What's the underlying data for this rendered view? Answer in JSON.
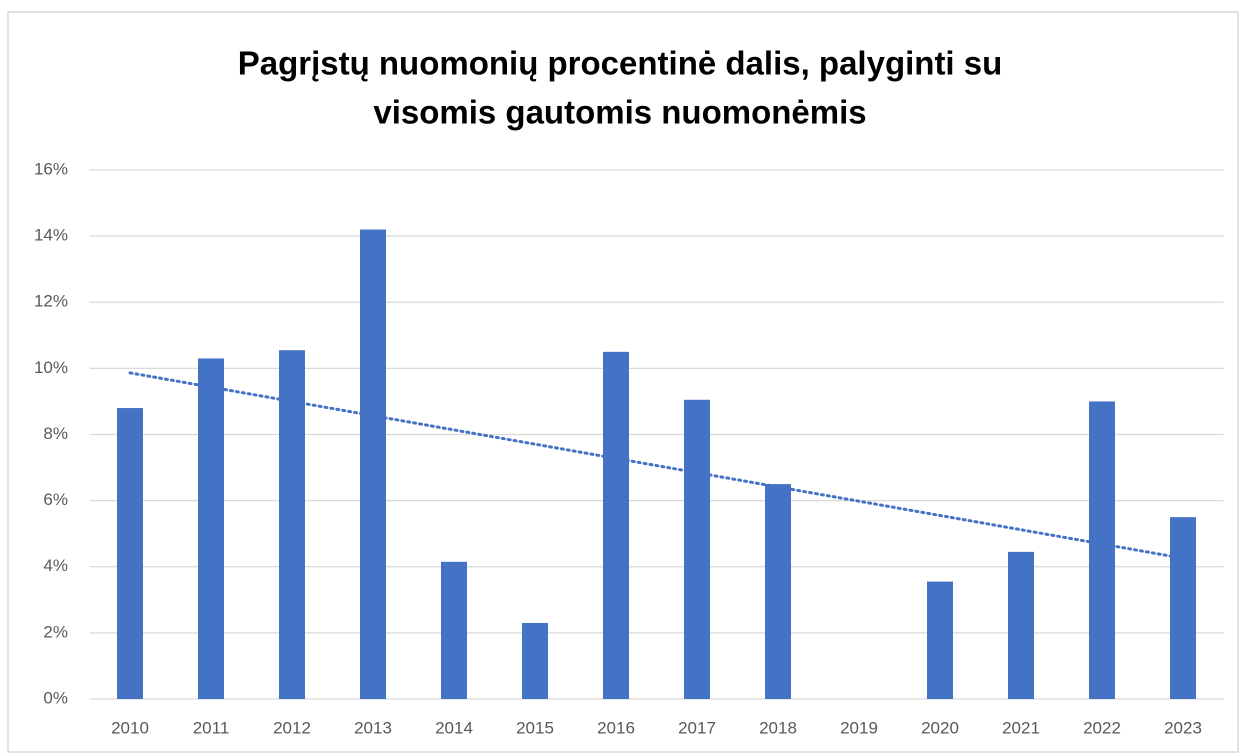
{
  "chart_data": {
    "type": "bar",
    "title": [
      "Pagrįstų nuomonių procentinė dalis, palyginti su",
      "visomis gautomis nuomonėmis"
    ],
    "categories": [
      "2010",
      "2011",
      "2012",
      "2013",
      "2014",
      "2015",
      "2016",
      "2017",
      "2018",
      "2019",
      "2020",
      "2021",
      "2022",
      "2023"
    ],
    "values": [
      8.8,
      10.3,
      10.55,
      14.2,
      4.15,
      2.3,
      10.5,
      9.05,
      6.5,
      0,
      3.55,
      4.45,
      9.0,
      5.5
    ],
    "color": "#4472c4",
    "ylim": [
      0,
      16
    ],
    "yticks": [
      {
        "value": 0,
        "label": "0%"
      },
      {
        "value": 2,
        "label": "2%"
      },
      {
        "value": 4,
        "label": "4%"
      },
      {
        "value": 6,
        "label": "6%"
      },
      {
        "value": 8,
        "label": "8%"
      },
      {
        "value": 10,
        "label": "10%"
      },
      {
        "value": 12,
        "label": "12%"
      },
      {
        "value": 14,
        "label": "14%"
      },
      {
        "value": 16,
        "label": "16%"
      }
    ],
    "grid": true,
    "trendline": "linear"
  }
}
